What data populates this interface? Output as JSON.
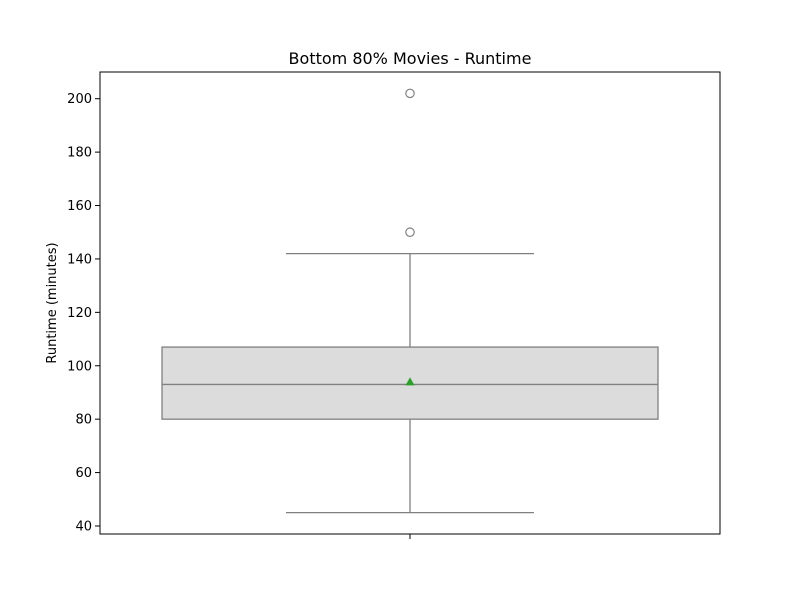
{
  "chart_data": {
    "type": "box",
    "title": "Bottom 80% Movies - Runtime",
    "xlabel": "",
    "ylabel": "Runtime (minutes)",
    "ylim": [
      37,
      210
    ],
    "yticks": [
      40,
      60,
      80,
      100,
      120,
      140,
      160,
      180,
      200
    ],
    "grid": false,
    "box": {
      "whisker_low": 45,
      "q1": 80,
      "median": 93,
      "q3": 107,
      "whisker_high": 142,
      "mean": 94,
      "outliers": [
        150,
        202
      ]
    },
    "colors": {
      "box_fill": "#dcdcdc",
      "box_edge": "#808080",
      "mean_marker": "#2ca02c"
    }
  }
}
